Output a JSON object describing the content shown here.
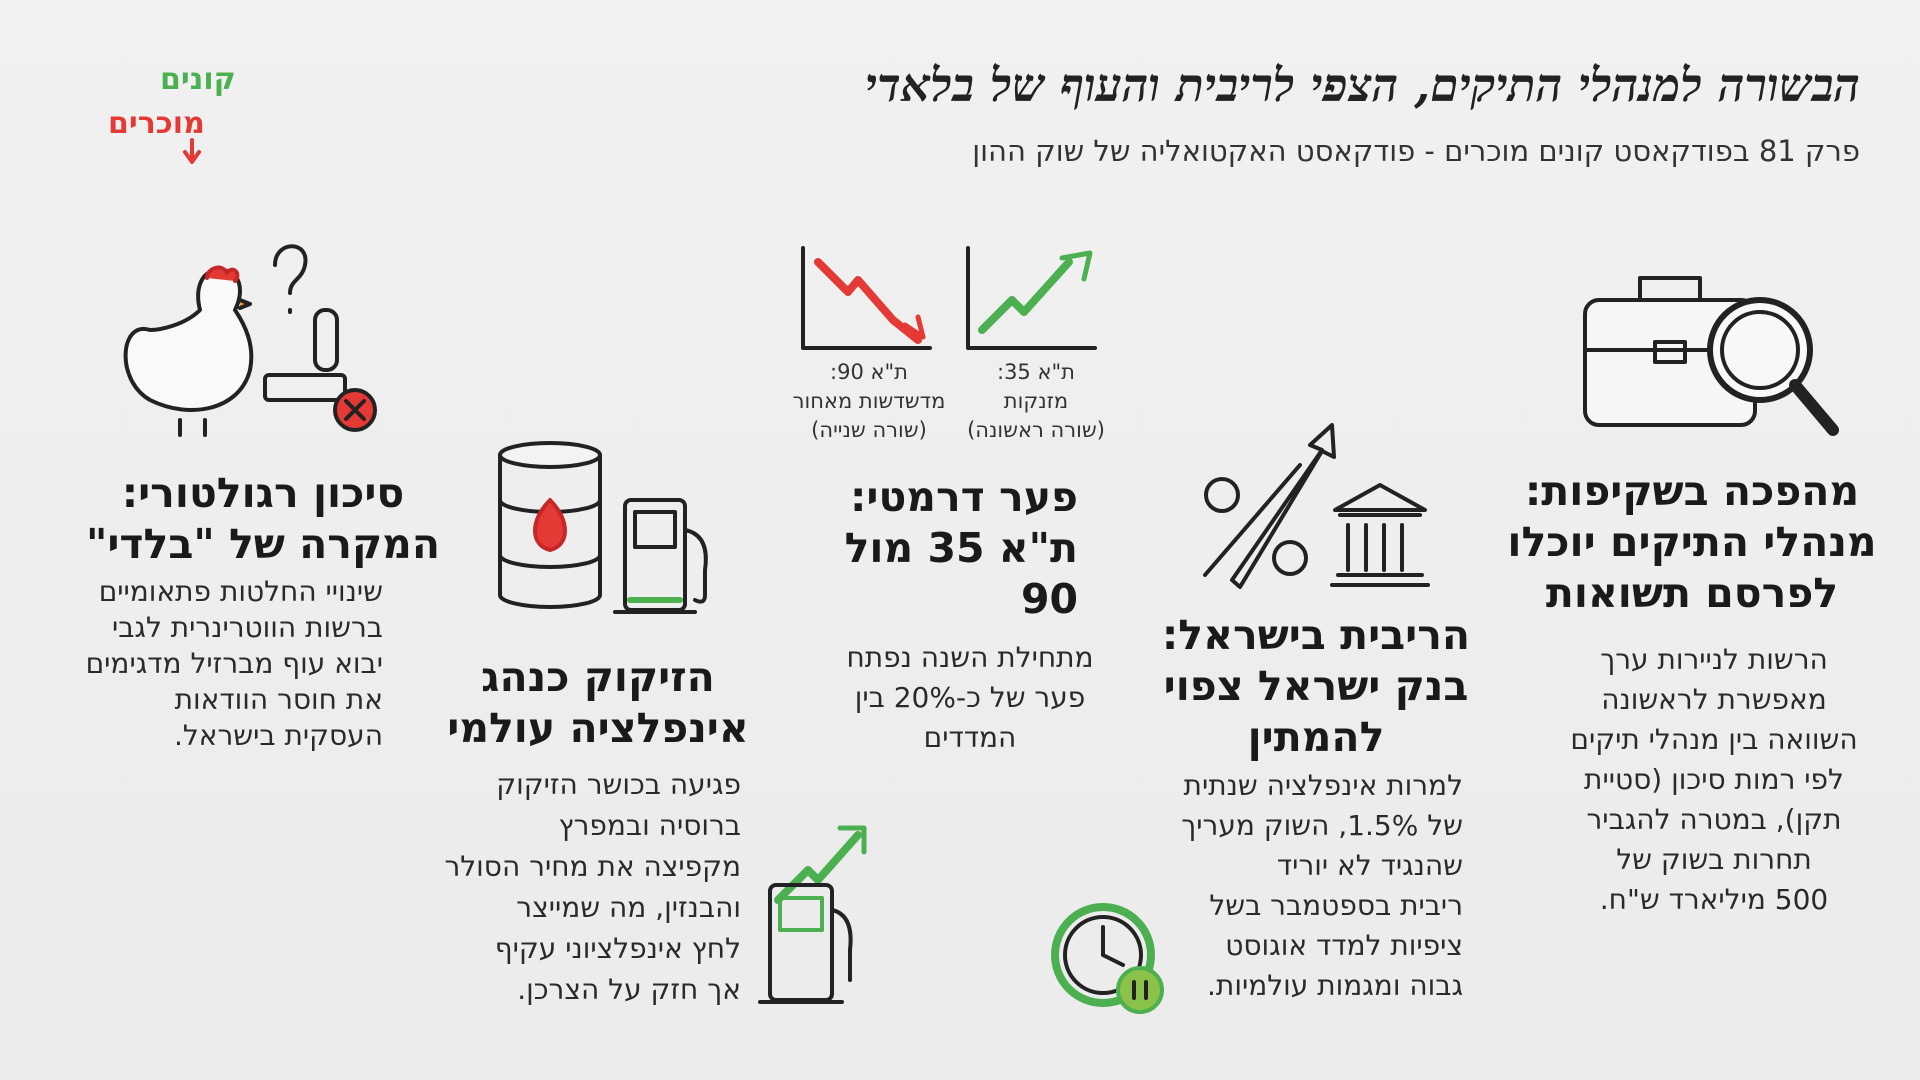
{
  "header": {
    "title": "הבשורה למנהלי התיקים, הצפי לריבית והעוף של בלאדי",
    "subtitle": "פרק 81 בפודקאסט קונים מוכרים - פודקאסט האקטואליה של שוק ההון"
  },
  "logo": {
    "top": "קונים",
    "bottom": "מוכרים"
  },
  "sections": [
    {
      "title_lines": [
        "מהפכה בשקיפות:",
        "מנהלי התיקים יוכלו",
        "לפרסם תשואות"
      ],
      "body_lines": [
        "הרשות לניירות ערך",
        "מאפשרת לראשונה",
        "השוואה בין מנהלי תיקים",
        "לפי רמות סיכון (סטיית",
        "תקן), במטרה להגביר",
        "תחרות בשוק של",
        "500 מיליארד ש\"ח."
      ]
    },
    {
      "title_lines": [
        "הריבית בישראל:",
        "בנק ישראל צפוי",
        "להמתין"
      ],
      "body_lines": [
        "למרות אינפלציה שנתית",
        "של 1.5%, השוק מעריך",
        "שהנגיד לא יוריד",
        "ריבית בספטמבר בשל",
        "ציפיות למדד אוגוסט",
        "גבוה ומגמות עולמיות."
      ]
    },
    {
      "title_lines": [
        "פער דרמטי:",
        "ת\"א 35 מול",
        "90"
      ],
      "body_lines": [
        "מתחילת השנה נפתח",
        "פער של כ-20% בין",
        "המדדים"
      ],
      "chart_labels": [
        [
          "ת\"א 35:",
          "מזנקות",
          "(שורה ראשונה)"
        ],
        [
          "ת\"א 90:",
          "מדשדשות מאחור",
          "(שורה שנייה)"
        ]
      ]
    },
    {
      "title_lines": [
        "הזיקוק כנהג",
        "אינפלציה עולמי"
      ],
      "body_lines": [
        "פגיעה בכושר הזיקוק",
        "ברוסיה ובמפרץ",
        "מקפיצה את מחיר הסולר",
        "והבנזין, מה שמייצר",
        "לחץ אינפלציוני עקיף",
        "אך חזק על הצרכן."
      ]
    },
    {
      "title_lines": [
        "סיכון רגולטורי:",
        "המקרה של \"בלדי\""
      ],
      "body_lines": [
        "שינויי החלטות פתאומיים",
        "ברשות הווטרינרית לגבי",
        "יבוא עוף מברזיל מדגימים",
        "את חוסר הוודאות",
        "העסקית בישראל."
      ]
    }
  ]
}
